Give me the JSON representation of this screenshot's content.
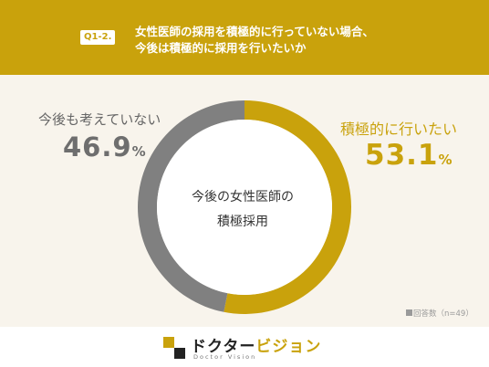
{
  "header": {
    "badge": "Q1-2.",
    "question_line1": "女性医師の採用を積極的に行っていない場合、",
    "question_line2": "今後は積極的に採用を行いたいか"
  },
  "center_label": {
    "line1": "今後の女性医師の",
    "line2": "積極採用"
  },
  "note": "回答数（n=49）",
  "logo": {
    "main_dark": "ドクター",
    "main_accent": "ビジョン",
    "sub": "Doctor Vision"
  },
  "colors": {
    "gold": "#c9a20c",
    "gray": "#808080",
    "background": "#f8f4ec"
  },
  "chart_data": {
    "type": "pie",
    "title": "今後の女性医師の積極採用",
    "categories": [
      "積極的に行いたい",
      "今後も考えていない"
    ],
    "values": [
      53.1,
      46.9
    ],
    "value_labels": [
      "53.1",
      "46.9"
    ],
    "unit": "%",
    "colors": [
      "#c9a20c",
      "#808080"
    ],
    "legend": "none"
  }
}
